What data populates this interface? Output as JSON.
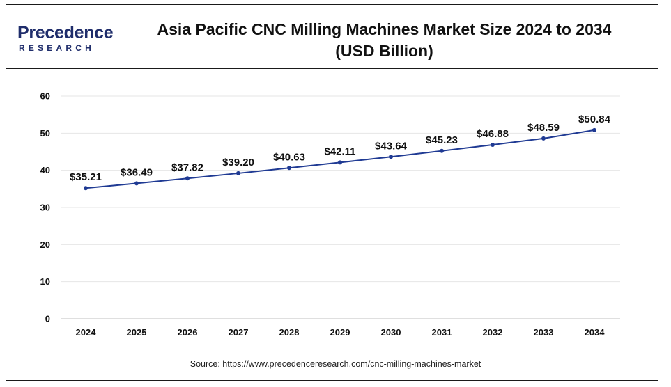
{
  "brand": {
    "logo_main": "Precedence",
    "logo_sub": "RESEARCH",
    "brand_color": "#1f2d6b"
  },
  "header": {
    "title_line1": "Asia Pacific CNC Milling Machines Market Size 2024 to 2034",
    "title_line2": "(USD Billion)"
  },
  "footer": {
    "source": "Source: https://www.precedenceresearch.com/cnc-milling-machines-market"
  },
  "chart_data": {
    "type": "line",
    "title": "Asia Pacific CNC Milling Machines Market Size 2024 to 2034 (USD Billion)",
    "categories": [
      "2024",
      "2025",
      "2026",
      "2027",
      "2028",
      "2029",
      "2030",
      "2031",
      "2032",
      "2033",
      "2034"
    ],
    "series": [
      {
        "values": [
          35.21,
          36.49,
          37.82,
          39.2,
          40.63,
          42.11,
          43.64,
          45.23,
          46.88,
          48.59,
          50.84
        ],
        "labels": [
          "$35.21",
          "$36.49",
          "$37.82",
          "$39.20",
          "$40.63",
          "$42.11",
          "$43.64",
          "$45.23",
          "$46.88",
          "$48.59",
          "$50.84"
        ],
        "color": "#1f3a93"
      }
    ],
    "yticks": [
      "0",
      "10",
      "20",
      "30",
      "40",
      "50",
      "60"
    ],
    "ylim": [
      0,
      60
    ],
    "xlabel": "",
    "ylabel": "",
    "grid": "horizontal",
    "grid_color": "#e6e6e6",
    "legend": "none"
  }
}
